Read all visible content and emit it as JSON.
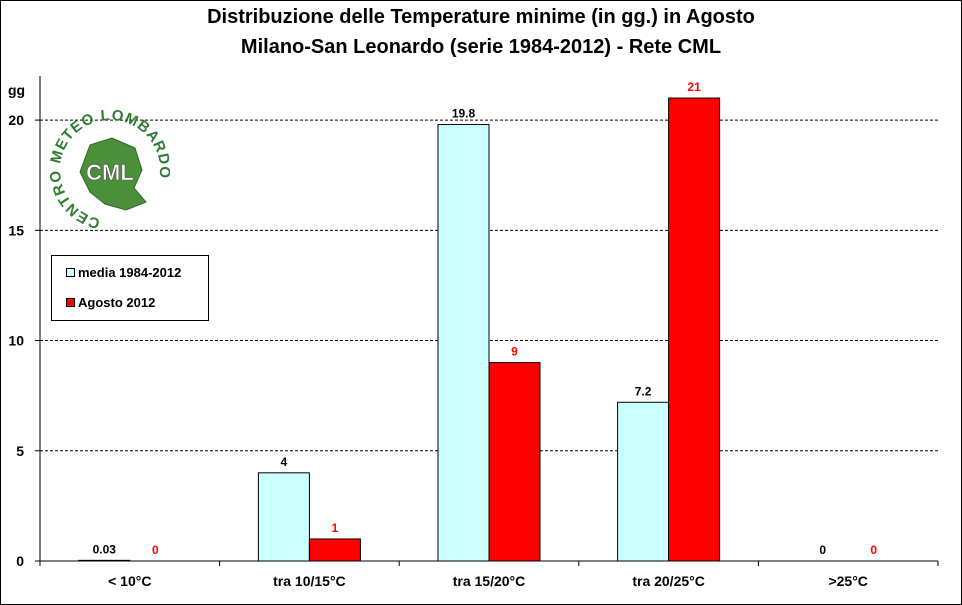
{
  "title_line1": "Distribuzione  delle  Temperature  minime  (in gg.) in Agosto",
  "title_line2": "Milano-San  Leonardo  (serie  1984-2012)  - Rete CML",
  "logo": {
    "ring_text": "CENTRO METEO LOMBARDO",
    "center_text": "CML"
  },
  "chart_data": {
    "type": "bar",
    "title": "Distribuzione  delle  Temperature  minime  (in gg.) in Agosto",
    "subtitle": "Milano-San  Leonardo  (serie  1984-2012)  - Rete CML",
    "ylabel": "gg",
    "xlabel": "",
    "ylim": [
      0,
      21
    ],
    "yticks": [
      0,
      5,
      10,
      15,
      20
    ],
    "grid": true,
    "legend_position": "left",
    "categories": [
      "< 10°C",
      "tra 10/15°C",
      "tra 15/20°C",
      "tra 20/25°C",
      ">25°C"
    ],
    "series": [
      {
        "name": "media 1984-2012",
        "color": "#ccffff",
        "label_color": "#000000",
        "values": [
          0.03,
          4,
          19.8,
          7.2,
          0
        ],
        "labels": [
          "0.03",
          "4",
          "19.8",
          "7.2",
          "0"
        ]
      },
      {
        "name": "Agosto 2012",
        "color": "#ff0000",
        "label_color": "#ff0000",
        "values": [
          0,
          1,
          9,
          21,
          0
        ],
        "labels": [
          "0",
          "1",
          "9",
          "21",
          "0"
        ]
      }
    ]
  }
}
